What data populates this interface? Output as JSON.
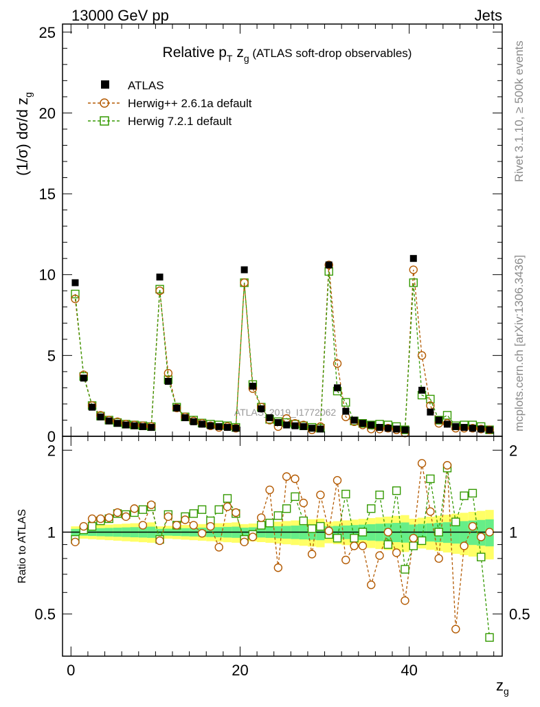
{
  "header": {
    "energy": "13000 GeV pp",
    "category": "Jets"
  },
  "side_text": {
    "rivet": "Rivet 3.1.10, ≥ 500k events",
    "mcplots": "mcplots.cern.ch [arXiv:1306.3436]"
  },
  "watermark": "ATLAS_2019_I1772062",
  "colors": {
    "atlas": "#000000",
    "herwigpp": "#b35900",
    "herwig7": "#339900",
    "band_yellow": "#ffff66",
    "band_green": "#66ee88"
  },
  "chart_data": [
    {
      "type": "line",
      "title": "Relative p_T z_g (ATLAS soft-drop observables)",
      "title_parts": {
        "main": "Relative p",
        "sub_t": "T",
        "z": " z",
        "sub_g": "g",
        "rest": " (ATLAS soft-drop observables)"
      },
      "ylabel": "(1/σ) dσ/d z_g",
      "xlabel": "z_g",
      "xlim": [
        -1,
        51
      ],
      "ylim": [
        0,
        25.5
      ],
      "xticks": [
        0,
        20,
        40
      ],
      "yticks": [
        0,
        5,
        10,
        15,
        20,
        25
      ],
      "legend": [
        "ATLAS",
        "Herwig++ 2.6.1a default",
        "Herwig 7.2.1 default"
      ],
      "x": [
        0.5,
        1.5,
        2.5,
        3.5,
        4.5,
        5.5,
        6.5,
        7.5,
        8.5,
        9.5,
        10.5,
        11.5,
        12.5,
        13.5,
        14.5,
        15.5,
        16.5,
        17.5,
        18.5,
        19.5,
        20.5,
        21.5,
        22.5,
        23.5,
        24.5,
        25.5,
        26.5,
        27.5,
        28.5,
        29.5,
        30.5,
        31.5,
        32.5,
        33.5,
        34.5,
        35.5,
        36.5,
        37.5,
        38.5,
        39.5,
        40.5,
        41.5,
        42.5,
        43.5,
        44.5,
        45.5,
        46.5,
        47.5,
        48.5,
        49.5
      ],
      "series": [
        {
          "name": "ATLAS",
          "values": [
            9.5,
            3.6,
            1.8,
            1.2,
            0.95,
            0.8,
            0.7,
            0.65,
            0.6,
            0.55,
            9.85,
            3.4,
            1.75,
            1.15,
            0.9,
            0.75,
            0.65,
            0.6,
            0.55,
            0.5,
            10.3,
            3.1,
            1.7,
            1.15,
            0.85,
            0.7,
            0.65,
            0.6,
            0.5,
            0.45,
            10.6,
            3.0,
            1.55,
            1.0,
            0.8,
            0.7,
            0.55,
            0.5,
            0.45,
            0.4,
            11.0,
            2.85,
            1.5,
            1.0,
            0.75,
            0.6,
            0.55,
            0.5,
            0.45,
            0.4
          ]
        },
        {
          "name": "Herwig++ 2.6.1a default",
          "values": [
            8.5,
            3.8,
            1.9,
            1.3,
            1.0,
            0.9,
            0.75,
            0.7,
            0.65,
            0.6,
            9.0,
            3.9,
            1.75,
            1.2,
            0.95,
            0.8,
            0.65,
            0.55,
            0.6,
            0.5,
            9.5,
            2.95,
            1.8,
            1.0,
            0.6,
            1.1,
            0.8,
            0.7,
            0.4,
            0.6,
            10.6,
            4.5,
            1.2,
            0.9,
            0.7,
            0.45,
            0.45,
            0.5,
            0.4,
            0.2,
            10.3,
            5.0,
            1.9,
            0.8,
            0.8,
            0.5,
            0.5,
            0.5,
            0.45,
            0.4
          ]
        },
        {
          "name": "Herwig 7.2.1 default",
          "values": [
            8.8,
            3.7,
            1.9,
            1.25,
            1.0,
            0.85,
            0.75,
            0.7,
            0.65,
            0.6,
            9.1,
            3.5,
            1.8,
            1.2,
            1.0,
            0.82,
            0.75,
            0.7,
            0.65,
            0.55,
            9.5,
            3.2,
            1.8,
            1.05,
            0.9,
            0.85,
            0.75,
            0.65,
            0.55,
            0.5,
            10.2,
            2.8,
            2.1,
            0.95,
            0.8,
            0.7,
            0.75,
            0.7,
            0.6,
            0.4,
            9.5,
            2.55,
            2.3,
            1.0,
            1.3,
            0.65,
            0.7,
            0.7,
            0.6,
            0.4
          ]
        }
      ]
    },
    {
      "type": "line",
      "ylabel": "Ratio to ATLAS",
      "xlabel": "z_g",
      "xlim": [
        -1,
        51
      ],
      "ylim": [
        0.35,
        2.25
      ],
      "xticks": [
        0,
        20,
        40
      ],
      "xtick_labels": [
        "0",
        "20",
        "40"
      ],
      "yticks": [
        0.5,
        1,
        2
      ],
      "ytick_labels": [
        "0.5",
        "1",
        "2"
      ],
      "x": [
        0.5,
        1.5,
        2.5,
        3.5,
        4.5,
        5.5,
        6.5,
        7.5,
        8.5,
        9.5,
        10.5,
        11.5,
        12.5,
        13.5,
        14.5,
        15.5,
        16.5,
        17.5,
        18.5,
        19.5,
        20.5,
        21.5,
        22.5,
        23.5,
        24.5,
        25.5,
        26.5,
        27.5,
        28.5,
        29.5,
        30.5,
        31.5,
        32.5,
        33.5,
        34.5,
        35.5,
        36.5,
        37.5,
        38.5,
        39.5,
        40.5,
        41.5,
        42.5,
        43.5,
        44.5,
        45.5,
        46.5,
        47.5,
        48.5,
        49.5
      ],
      "series": [
        {
          "name": "Herwig++ 2.6.1a default",
          "values": [
            0.92,
            1.05,
            1.12,
            1.12,
            1.13,
            1.18,
            1.14,
            1.22,
            1.06,
            1.26,
            0.93,
            1.14,
            1.06,
            1.11,
            1.06,
            0.99,
            1.05,
            0.88,
            1.24,
            1.18,
            0.92,
            0.96,
            1.13,
            1.43,
            0.74,
            1.6,
            1.57,
            1.28,
            0.83,
            1.37,
            1.01,
            1.55,
            0.79,
            0.89,
            0.89,
            0.64,
            0.82,
            1.0,
            0.84,
            0.56,
            0.95,
            1.79,
            1.19,
            0.8,
            1.76,
            0.44,
            0.89,
            1.05,
            0.96,
            1.0
          ]
        },
        {
          "name": "Herwig 7.2.1 default",
          "values": [
            0.94,
            1.02,
            1.05,
            1.1,
            1.12,
            1.17,
            1.16,
            1.18,
            1.21,
            1.24,
            0.94,
            1.16,
            1.06,
            1.14,
            1.17,
            1.21,
            1.1,
            1.21,
            1.33,
            1.17,
            0.94,
            0.98,
            1.06,
            1.08,
            1.15,
            1.22,
            1.35,
            1.1,
            1.03,
            1.05,
            0.98,
            0.95,
            1.38,
            0.95,
            1.0,
            1.22,
            1.37,
            0.9,
            1.42,
            0.73,
            0.89,
            0.93,
            1.57,
            1.0,
            1.72,
            1.09,
            1.36,
            1.39,
            0.81,
            0.41
          ]
        }
      ]
    }
  ]
}
